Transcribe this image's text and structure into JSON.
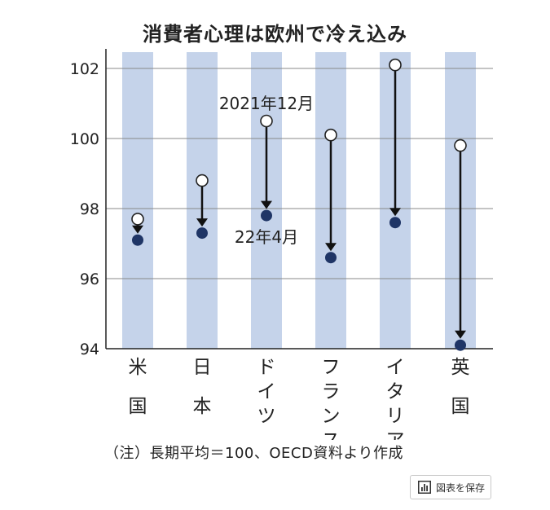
{
  "title": "消費者心理は欧州で冷え込み",
  "note": "（注）長期平均＝100、OECD資料より作成",
  "save_button_label": "図表を保存",
  "colors": {
    "band": "#c5d3ea",
    "grid": "#888888",
    "filled_dot": "#1f3566",
    "arrow": "#111111",
    "open_dot_stroke": "#222222"
  },
  "chart_data": {
    "type": "scatter",
    "title": "消費者心理は欧州で冷え込み",
    "ylim": [
      94,
      102.5
    ],
    "yticks": [
      94,
      96,
      98,
      100,
      102
    ],
    "categories": [
      "米国",
      "日本",
      "ドイツ",
      "フランス",
      "イタリア",
      "英国"
    ],
    "series": [
      {
        "name": "2021年12月",
        "marker": "open",
        "values": [
          97.7,
          98.8,
          100.5,
          100.1,
          102.1,
          99.8
        ]
      },
      {
        "name": "22年4月",
        "marker": "filled",
        "values": [
          97.1,
          97.3,
          97.8,
          96.6,
          97.6,
          94.1
        ]
      }
    ],
    "annotations": [
      "2021年12月",
      "22年4月"
    ]
  }
}
